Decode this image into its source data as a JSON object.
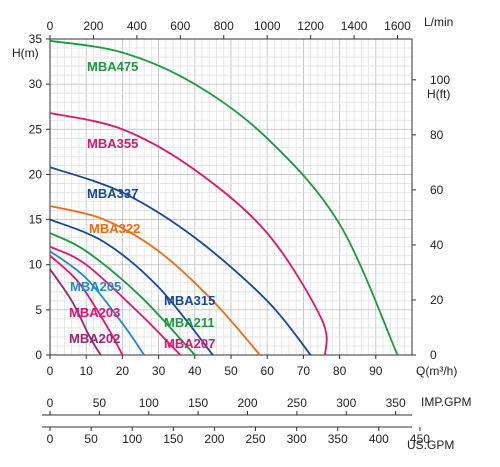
{
  "chart_data": {
    "type": "line",
    "title": "",
    "xlabel": "Q(m³/h)",
    "ylabel_left": "H(m)",
    "ylabel_right": "H(ft)",
    "top_unit": "L/min",
    "xlim": [
      0,
      100
    ],
    "ylim": [
      0,
      35
    ],
    "x_ticks": [
      "0",
      "10",
      "20",
      "30",
      "40",
      "50",
      "60",
      "70",
      "80",
      "90"
    ],
    "y_ticks": [
      "0",
      "5",
      "10",
      "15",
      "20",
      "25",
      "30",
      "35"
    ],
    "top_ticks": [
      "0",
      "200",
      "400",
      "600",
      "800",
      "1000",
      "1200",
      "1400",
      "1600"
    ],
    "right_ticks": [
      "0",
      "20",
      "40",
      "60",
      "80",
      "100"
    ],
    "imp_axis": {
      "label": "IMP.GPM",
      "ticks": [
        "0",
        "50",
        "100",
        "150",
        "200",
        "250",
        "300",
        "350"
      ]
    },
    "us_axis": {
      "label": "US.GPM",
      "ticks": [
        "0",
        "50",
        "100",
        "150",
        "200",
        "250",
        "300",
        "350",
        "400",
        "450"
      ]
    },
    "grid": true,
    "series": [
      {
        "name": "MBA475",
        "color": "#1a9a3c",
        "points": [
          [
            0,
            34.8
          ],
          [
            20,
            33.5
          ],
          [
            40,
            30.0
          ],
          [
            60,
            24.0
          ],
          [
            80,
            14.5
          ],
          [
            96,
            0
          ]
        ]
      },
      {
        "name": "MBA355",
        "color": "#e0156e",
        "points": [
          [
            0,
            26.8
          ],
          [
            20,
            25.0
          ],
          [
            40,
            20.5
          ],
          [
            60,
            13.5
          ],
          [
            75,
            4.0
          ],
          [
            76,
            0
          ]
        ]
      },
      {
        "name": "MBA337",
        "color": "#17479b",
        "points": [
          [
            0,
            20.8
          ],
          [
            20,
            18.0
          ],
          [
            40,
            13.0
          ],
          [
            60,
            6.0
          ],
          [
            72,
            0
          ]
        ]
      },
      {
        "name": "MBA322",
        "color": "#ee6b12",
        "points": [
          [
            0,
            16.5
          ],
          [
            15,
            15.0
          ],
          [
            30,
            11.5
          ],
          [
            45,
            6.0
          ],
          [
            58,
            0
          ]
        ]
      },
      {
        "name": "MBA315",
        "color": "#17479b",
        "points": [
          [
            0,
            15.0
          ],
          [
            15,
            12.5
          ],
          [
            30,
            7.5
          ],
          [
            45,
            0
          ]
        ]
      },
      {
        "name": "MBA211",
        "color": "#1a9a3c",
        "points": [
          [
            0,
            13.5
          ],
          [
            10,
            11.5
          ],
          [
            25,
            6.5
          ],
          [
            40,
            0
          ]
        ]
      },
      {
        "name": "MBA207",
        "color": "#e0156e",
        "points": [
          [
            0,
            12.0
          ],
          [
            10,
            10.0
          ],
          [
            25,
            4.5
          ],
          [
            36,
            0
          ]
        ]
      },
      {
        "name": "MBA205",
        "color": "#2288cc",
        "points": [
          [
            0,
            11.5
          ],
          [
            10,
            8.5
          ],
          [
            20,
            3.5
          ],
          [
            26,
            0
          ]
        ]
      },
      {
        "name": "MBA203",
        "color": "#e0156e",
        "points": [
          [
            0,
            11.0
          ],
          [
            8,
            8.0
          ],
          [
            16,
            3.0
          ],
          [
            20,
            0
          ]
        ]
      },
      {
        "name": "MBA202",
        "color": "#a0207a",
        "points": [
          [
            0,
            9.5
          ],
          [
            6,
            6.0
          ],
          [
            11,
            2.0
          ],
          [
            14,
            0
          ]
        ]
      }
    ]
  }
}
